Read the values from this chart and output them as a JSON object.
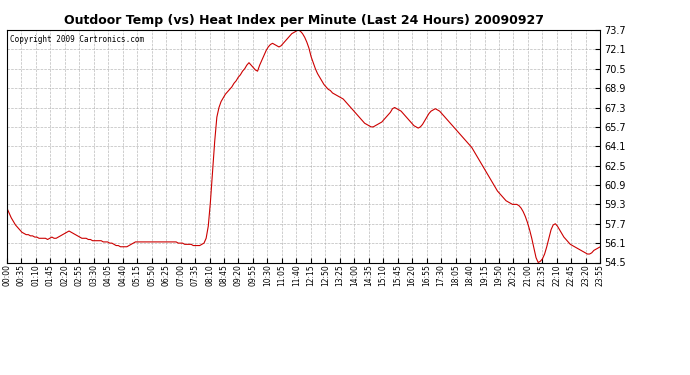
{
  "title": "Outdoor Temp (vs) Heat Index per Minute (Last 24 Hours) 20090927",
  "copyright": "Copyright 2009 Cartronics.com",
  "line_color": "#cc0000",
  "background_color": "#ffffff",
  "grid_color": "#aaaaaa",
  "ylim": [
    54.5,
    73.7
  ],
  "yticks": [
    54.5,
    56.1,
    57.7,
    59.3,
    60.9,
    62.5,
    64.1,
    65.7,
    67.3,
    68.9,
    70.5,
    72.1,
    73.7
  ],
  "xtick_labels": [
    "00:00",
    "00:35",
    "01:10",
    "01:45",
    "02:20",
    "02:55",
    "03:30",
    "04:05",
    "04:40",
    "05:15",
    "05:50",
    "06:25",
    "07:00",
    "07:35",
    "08:10",
    "08:45",
    "09:20",
    "09:55",
    "10:30",
    "11:05",
    "11:40",
    "12:15",
    "12:50",
    "13:25",
    "14:00",
    "14:35",
    "15:10",
    "15:45",
    "16:20",
    "16:55",
    "17:30",
    "18:05",
    "18:40",
    "19:15",
    "19:50",
    "20:25",
    "21:00",
    "21:35",
    "22:10",
    "22:45",
    "23:20",
    "23:55"
  ],
  "data_y": [
    59.0,
    58.6,
    58.2,
    57.9,
    57.6,
    57.4,
    57.2,
    57.0,
    56.9,
    56.8,
    56.8,
    56.7,
    56.7,
    56.6,
    56.6,
    56.5,
    56.5,
    56.5,
    56.5,
    56.4,
    56.5,
    56.6,
    56.5,
    56.5,
    56.6,
    56.7,
    56.8,
    56.9,
    57.0,
    57.1,
    57.0,
    56.9,
    56.8,
    56.7,
    56.6,
    56.5,
    56.5,
    56.5,
    56.4,
    56.4,
    56.3,
    56.3,
    56.3,
    56.3,
    56.3,
    56.2,
    56.2,
    56.2,
    56.1,
    56.1,
    56.0,
    55.9,
    55.9,
    55.8,
    55.8,
    55.8,
    55.8,
    55.9,
    56.0,
    56.1,
    56.2,
    56.2,
    56.2,
    56.2,
    56.2,
    56.2,
    56.2,
    56.2,
    56.2,
    56.2,
    56.2,
    56.2,
    56.2,
    56.2,
    56.2,
    56.2,
    56.2,
    56.2,
    56.2,
    56.2,
    56.1,
    56.1,
    56.1,
    56.0,
    56.0,
    56.0,
    56.0,
    55.9,
    55.9,
    55.9,
    55.9,
    56.0,
    56.1,
    56.5,
    57.5,
    59.5,
    62.0,
    64.5,
    66.5,
    67.3,
    67.8,
    68.1,
    68.4,
    68.6,
    68.8,
    69.0,
    69.3,
    69.5,
    69.8,
    70.0,
    70.3,
    70.5,
    70.8,
    71.0,
    70.8,
    70.6,
    70.4,
    70.3,
    70.8,
    71.2,
    71.6,
    72.0,
    72.3,
    72.5,
    72.6,
    72.5,
    72.4,
    72.3,
    72.4,
    72.6,
    72.8,
    73.0,
    73.2,
    73.4,
    73.5,
    73.6,
    73.7,
    73.6,
    73.4,
    73.1,
    72.7,
    72.2,
    71.5,
    71.0,
    70.5,
    70.1,
    69.8,
    69.5,
    69.2,
    69.0,
    68.8,
    68.7,
    68.5,
    68.4,
    68.3,
    68.2,
    68.1,
    68.0,
    67.8,
    67.6,
    67.4,
    67.2,
    67.0,
    66.8,
    66.6,
    66.4,
    66.2,
    66.0,
    65.9,
    65.8,
    65.7,
    65.7,
    65.8,
    65.9,
    66.0,
    66.1,
    66.3,
    66.5,
    66.7,
    66.9,
    67.2,
    67.3,
    67.2,
    67.1,
    67.0,
    66.8,
    66.6,
    66.4,
    66.2,
    66.0,
    65.8,
    65.7,
    65.6,
    65.7,
    65.9,
    66.2,
    66.5,
    66.8,
    67.0,
    67.1,
    67.2,
    67.1,
    67.0,
    66.8,
    66.6,
    66.4,
    66.2,
    66.0,
    65.8,
    65.6,
    65.4,
    65.2,
    65.0,
    64.8,
    64.6,
    64.4,
    64.2,
    64.0,
    63.7,
    63.4,
    63.1,
    62.8,
    62.5,
    62.2,
    61.9,
    61.6,
    61.3,
    61.0,
    60.7,
    60.4,
    60.2,
    60.0,
    59.8,
    59.6,
    59.5,
    59.4,
    59.3,
    59.3,
    59.3,
    59.2,
    59.0,
    58.7,
    58.3,
    57.8,
    57.2,
    56.5,
    55.7,
    54.9,
    54.5,
    54.6,
    54.8,
    55.2,
    55.8,
    56.5,
    57.2,
    57.6,
    57.7,
    57.5,
    57.2,
    56.9,
    56.6,
    56.4,
    56.2,
    56.0,
    55.9,
    55.8,
    55.7,
    55.6,
    55.5,
    55.4,
    55.3,
    55.2,
    55.2,
    55.3,
    55.5,
    55.6,
    55.7,
    55.8
  ]
}
